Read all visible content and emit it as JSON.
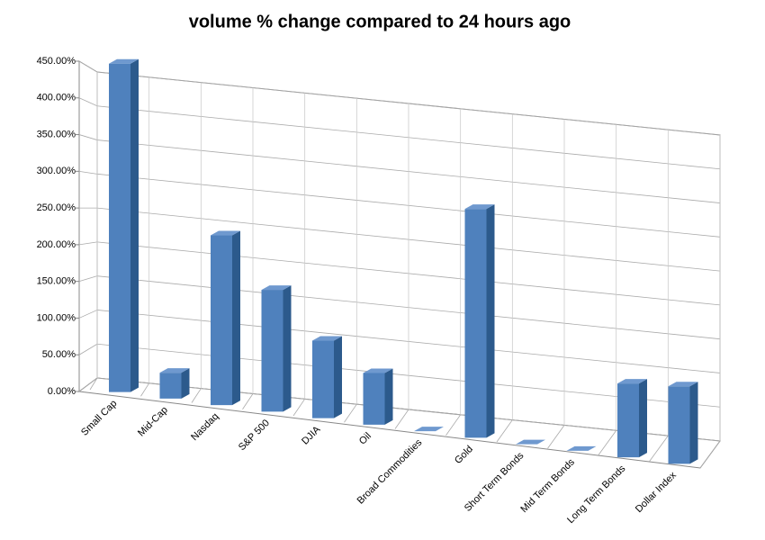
{
  "chart_data": {
    "type": "bar3d",
    "title": "volume % change compared to 24 hours ago",
    "categories": [
      "Small Cap",
      "Mid-Cap",
      "Nasdaq",
      "S&P 500",
      "DJIA",
      "Oil",
      "Broad Commodities",
      "Gold",
      "Short Term Bonds",
      "Mid Term Bonds",
      "Long Term Bonds",
      "Dollar Index"
    ],
    "values": [
      445,
      35,
      230,
      165,
      105,
      70,
      0,
      310,
      0,
      0,
      100,
      105
    ],
    "color": "#4f81bd",
    "ylim": [
      0,
      450
    ],
    "yticks": [
      {
        "value": 0,
        "label": "0.00%"
      },
      {
        "value": 50,
        "label": "50.00%"
      },
      {
        "value": 100,
        "label": "100.00%"
      },
      {
        "value": 150,
        "label": "150.00%"
      },
      {
        "value": 200,
        "label": "200.00%"
      },
      {
        "value": 250,
        "label": "250.00%"
      },
      {
        "value": 300,
        "label": "300.00%"
      },
      {
        "value": 350,
        "label": "350.00%"
      },
      {
        "value": 400,
        "label": "400.00%"
      },
      {
        "value": 450,
        "label": "450.00%"
      }
    ],
    "grid": true
  }
}
